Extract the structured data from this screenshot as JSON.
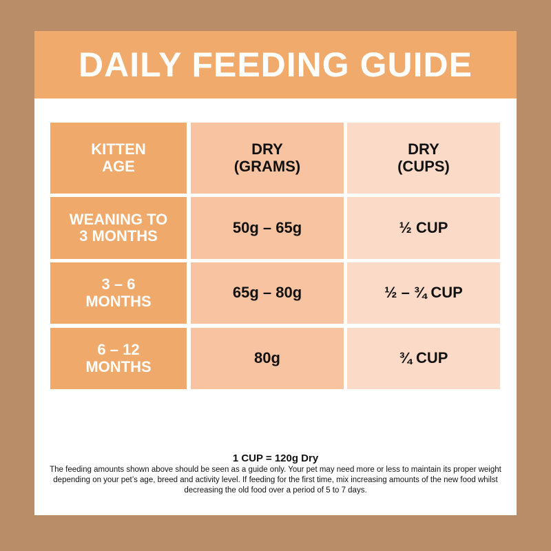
{
  "title": "DAILY FEEDING GUIDE",
  "table": {
    "headers": [
      "KITTEN\nAGE",
      "DRY\n(GRAMS)",
      "DRY\n(CUPS)"
    ],
    "rows": [
      [
        "WEANING TO\n3 MONTHS",
        "50g – 65g",
        "½ CUP"
      ],
      [
        "3 – 6\nMONTHS",
        "65g – 80g",
        "½ – ¾ CUP"
      ],
      [
        "6 – 12\nMONTHS",
        "80g",
        "¾ CUP"
      ]
    ]
  },
  "footer": {
    "conversion": "1 CUP = 120g Dry",
    "note": "The feeding amounts shown above should be seen as a guide only. Your pet may need more or less to maintain its proper weight depending on your pet’s age, breed and activity level. If feeding for the first time, mix increasing amounts of the new food whilst decreasing the old food over a period of 5 to 7 days."
  },
  "colors": {
    "background": "#b98d67",
    "header": "#f0aa6b",
    "age_column": "#eea96b",
    "grams_column": "#f8c3a0",
    "cups_column": "#fbdac8"
  }
}
